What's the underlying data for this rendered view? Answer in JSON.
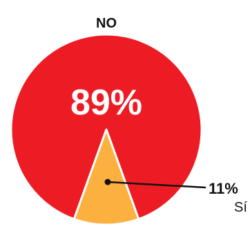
{
  "chart_data": {
    "type": "pie",
    "title": "NO",
    "slices": [
      {
        "label": "NO",
        "value": 89,
        "value_label": "89%",
        "color": "#ED1C24"
      },
      {
        "label": "Sí",
        "value": 11,
        "value_label": "11%",
        "color": "#FBB040"
      }
    ],
    "label_color_on_slice": "#FFFFFF",
    "leader_line_color": "#111111"
  }
}
